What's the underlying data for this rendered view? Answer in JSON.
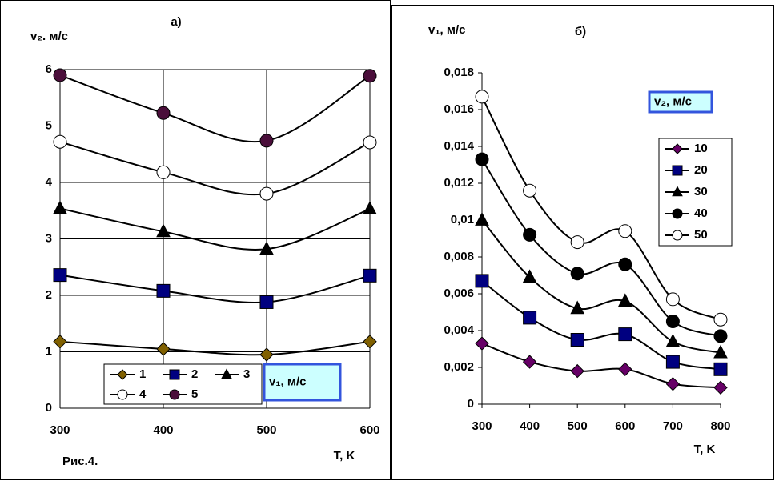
{
  "chart_data": [
    {
      "type": "line",
      "title": "а)",
      "ylabel": "v₂. м/с",
      "xlabel": "T, K",
      "annotation": "Рис.4.",
      "box_label": "v₁, м/с",
      "x": [
        300,
        400,
        500,
        600
      ],
      "xlim": [
        300,
        600
      ],
      "xticks": [
        300,
        400,
        500,
        600
      ],
      "ylim": [
        0,
        6
      ],
      "yticks": [
        0,
        1,
        2,
        3,
        4,
        5,
        6
      ],
      "grid": true,
      "series": [
        {
          "name": "1",
          "marker": "diamond",
          "color": "#806000",
          "values": [
            1.18,
            1.05,
            0.95,
            1.18
          ]
        },
        {
          "name": "2",
          "marker": "square",
          "color": "#000080",
          "values": [
            2.36,
            2.08,
            1.88,
            2.35
          ]
        },
        {
          "name": "3",
          "marker": "triangle",
          "color": "#000000",
          "values": [
            3.54,
            3.13,
            2.82,
            3.53
          ]
        },
        {
          "name": "4",
          "marker": "open-circle",
          "color": "#ffffff",
          "values": [
            4.72,
            4.18,
            3.8,
            4.71
          ]
        },
        {
          "name": "5",
          "marker": "circle",
          "color": "#4a0e3a",
          "values": [
            5.9,
            5.23,
            4.74,
            5.89
          ]
        }
      ]
    },
    {
      "type": "line",
      "title": "б)",
      "ylabel": "v₁, м/с",
      "xlabel": "T, K",
      "box_label": "v₂, м/с",
      "x": [
        300,
        400,
        500,
        600,
        700,
        800
      ],
      "xlim": [
        300,
        800
      ],
      "xticks": [
        300,
        400,
        500,
        600,
        700,
        800
      ],
      "ylim": [
        0,
        0.018
      ],
      "grid": false,
      "yticks": [
        0,
        {
          "value": 0.002,
          "label": "0,002"
        },
        {
          "value": 0.004,
          "label": "0,004"
        },
        {
          "value": 0.006,
          "label": "0,006"
        },
        {
          "value": 0.008,
          "label": "0,008"
        },
        {
          "value": 0.01,
          "label": "0,01"
        },
        {
          "value": 0.012,
          "label": "0,012"
        },
        {
          "value": 0.014,
          "label": "0,014"
        },
        {
          "value": 0.016,
          "label": "0,016"
        },
        {
          "value": 0.018,
          "label": "0,018"
        }
      ],
      "series": [
        {
          "name": "10",
          "marker": "diamond",
          "color": "#660066",
          "values": [
            0.0033,
            0.0023,
            0.0018,
            0.0019,
            0.0011,
            0.0009
          ]
        },
        {
          "name": "20",
          "marker": "square",
          "color": "#000080",
          "values": [
            0.0067,
            0.0047,
            0.0035,
            0.0038,
            0.0023,
            0.0019
          ]
        },
        {
          "name": "30",
          "marker": "triangle",
          "color": "#000000",
          "values": [
            0.01,
            0.0069,
            0.0052,
            0.0056,
            0.0034,
            0.0028
          ]
        },
        {
          "name": "40",
          "marker": "circle",
          "color": "#000000",
          "values": [
            0.0133,
            0.0092,
            0.0071,
            0.0076,
            0.0045,
            0.0037
          ]
        },
        {
          "name": "50",
          "marker": "open-circle",
          "color": "#ffffff",
          "values": [
            0.0167,
            0.0116,
            0.0088,
            0.0094,
            0.0057,
            0.0046
          ]
        }
      ]
    }
  ]
}
